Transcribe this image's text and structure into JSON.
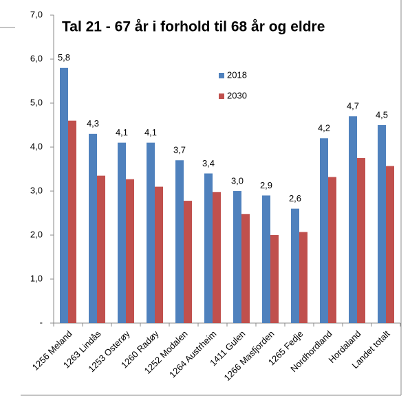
{
  "chart_data": {
    "type": "bar",
    "title": "Tal 21 - 67 år i forhold til 68 år og eldre",
    "categories": [
      "1256 Meland",
      "1263 Lindås",
      "1253 Osterøy",
      "1260 Radøy",
      "1252 Modalen",
      "1264 Austrheim",
      "1411 Gulen",
      "1266 Masfjorden",
      "1265 Fedje",
      "Nordhordland",
      "Hordaland",
      "Landet totalt"
    ],
    "series": [
      {
        "name": "2018",
        "color": "#4f81bd",
        "values": [
          5.8,
          4.3,
          4.1,
          4.1,
          3.7,
          3.4,
          3.0,
          2.9,
          2.6,
          4.2,
          4.7,
          4.5
        ],
        "value_labels": [
          "5,8",
          "4,3",
          "4,1",
          "4,1",
          "3,7",
          "3,4",
          "3,0",
          "2,9",
          "2,6",
          "4,2",
          "4,7",
          "4,5"
        ]
      },
      {
        "name": "2030",
        "color": "#c0504d",
        "values": [
          4.6,
          3.35,
          3.27,
          3.1,
          2.78,
          2.98,
          2.48,
          2.0,
          2.07,
          3.32,
          3.75,
          3.57
        ]
      }
    ],
    "ylim": [
      0,
      7
    ],
    "yticks": [
      {
        "value": 0,
        "label": "-"
      },
      {
        "value": 1,
        "label": "1,0"
      },
      {
        "value": 2,
        "label": "2,0"
      },
      {
        "value": 3,
        "label": "3,0"
      },
      {
        "value": 4,
        "label": "4,0"
      },
      {
        "value": 5,
        "label": "5,0"
      },
      {
        "value": 6,
        "label": "6,0"
      },
      {
        "value": 7,
        "label": "7,0"
      }
    ],
    "grid": false
  }
}
